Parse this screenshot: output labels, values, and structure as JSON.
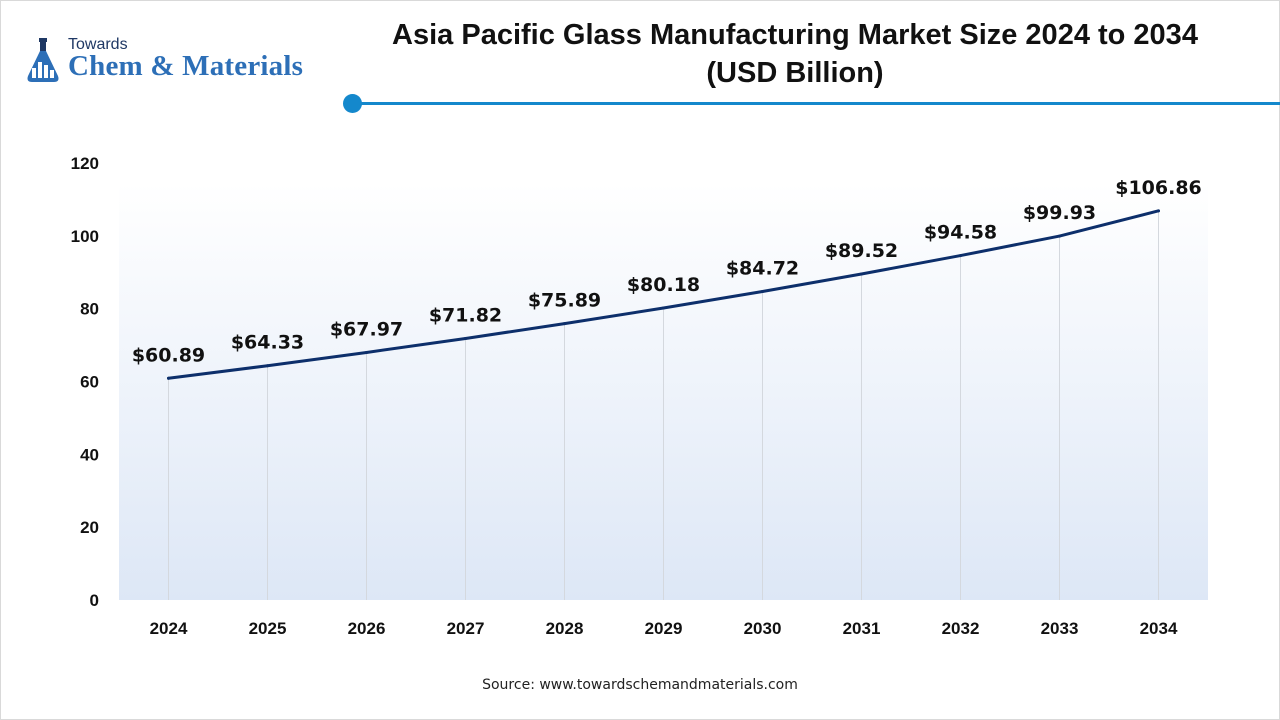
{
  "header": {
    "logo_small": "Towards",
    "logo_large": "Chem & Materials",
    "title_line1": "Asia Pacific Glass Manufacturing Market Size 2024 to 2034",
    "title_line2": "(USD Billion)"
  },
  "source": "Source: www.towardschemandmaterials.com",
  "colors": {
    "line": "#0d2f6b",
    "accent": "#1488cc",
    "gradient_top": "#ffffff",
    "gradient_bottom": "#dde7f6",
    "gridline": "#d4d8de"
  },
  "chart_data": {
    "type": "line",
    "title": "Asia Pacific Glass Manufacturing Market Size 2024 to 2034 (USD Billion)",
    "categories": [
      "2024",
      "2025",
      "2026",
      "2027",
      "2028",
      "2029",
      "2030",
      "2031",
      "2032",
      "2033",
      "2034"
    ],
    "series": [
      {
        "values": [
          60.89,
          64.33,
          67.97,
          71.82,
          75.89,
          80.18,
          84.72,
          89.52,
          94.58,
          99.93,
          106.86
        ],
        "labels": [
          "$60.89",
          "$64.33",
          "$67.97",
          "$71.82",
          "$75.89",
          "$80.18",
          "$84.72",
          "$89.52",
          "$94.58",
          "$99.93",
          "$106.86"
        ]
      }
    ],
    "yticks": [
      "0",
      "20",
      "40",
      "60",
      "80",
      "100",
      "120"
    ],
    "ylim": [
      0,
      120
    ],
    "grid": "vertical",
    "legend": "none"
  }
}
